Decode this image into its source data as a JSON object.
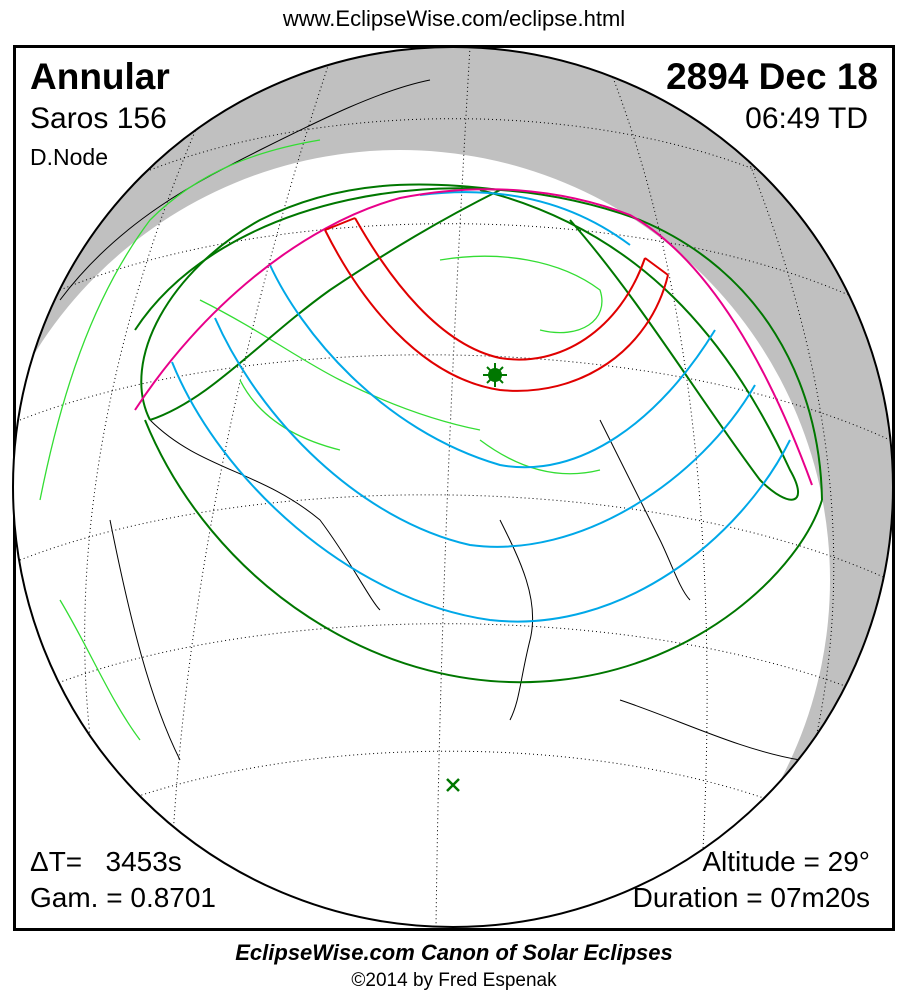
{
  "header": {
    "url": "www.EclipseWise.com/eclipse.html"
  },
  "eclipse": {
    "type": "Annular",
    "saros": "Saros 156",
    "node": "D.Node",
    "date": "2894 Dec 18",
    "time": "06:49 TD",
    "delta_t": "ΔT=   3453s",
    "gamma": "Gam. = 0.8701",
    "altitude": "Altitude = 29°",
    "duration": "Duration = 07m20s"
  },
  "footer": {
    "canon": "EclipseWise.com Canon of Solar Eclipses",
    "copyright": "©2014 by Fred Espenak"
  },
  "map": {
    "icons": [
      "greatest-eclipse-star-icon",
      "sub-solar-point-x-icon"
    ],
    "colors": {
      "night": "#c0c0c0",
      "coastline": "#000000",
      "borders": "#33dd33",
      "penumbral_limits": "#007700",
      "magnitude_lines": "#00a8e8",
      "central_path": "#e00000",
      "sunrise_sunset": "#e8008a"
    }
  }
}
